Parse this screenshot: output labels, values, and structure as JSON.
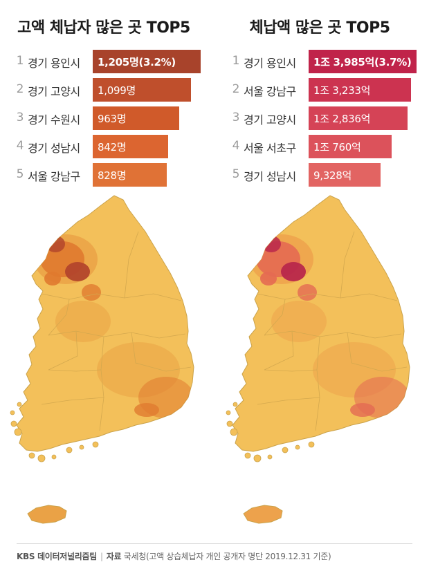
{
  "chart_data": [
    {
      "type": "bar",
      "title": "고액 체납자 많은 곳 TOP5",
      "categories": [
        "경기 용인시",
        "경기 고양시",
        "경기 수원시",
        "경기 성남시",
        "서울 강남구"
      ],
      "values": [
        1205,
        1099,
        963,
        842,
        828
      ],
      "value_labels": [
        "1,205명(3.2%)",
        "1,099명",
        "963명",
        "842명",
        "828명"
      ],
      "ranks": [
        "1",
        "2",
        "3",
        "4",
        "5"
      ],
      "bar_colors": [
        "#a8432b",
        "#bf4f2c",
        "#d05a2a",
        "#dc6530",
        "#e07236"
      ],
      "map_colors": {
        "base": "#f3c05a",
        "mid": "#eaa246",
        "high": "#e07a2f",
        "peak": "#b3462c"
      }
    },
    {
      "type": "bar",
      "title": "체납액 많은 곳 TOP5",
      "categories": [
        "경기 용인시",
        "서울 강남구",
        "경기 고양시",
        "서울 서초구",
        "경기 성남시"
      ],
      "values": [
        13985,
        13233,
        12836,
        10760,
        9328
      ],
      "value_labels": [
        "1조 3,985억(3.7%)",
        "1조 3,233억",
        "1조 2,836억",
        "1조 760억",
        "9,328억"
      ],
      "ranks": [
        "1",
        "2",
        "3",
        "4",
        "5"
      ],
      "bar_colors": [
        "#c0234a",
        "#cc3350",
        "#d54356",
        "#dc525b",
        "#e26462"
      ],
      "map_colors": {
        "base": "#f3c05a",
        "mid": "#eda24c",
        "high": "#e46a52",
        "peak": "#b8274b"
      }
    }
  ],
  "footer": {
    "brand": "KBS 데이터저널리즘팀",
    "source_label": "자료",
    "source_text": "국세청(고액 상습체납자 개인 공개자 명단 2019.12.31 기준)"
  }
}
